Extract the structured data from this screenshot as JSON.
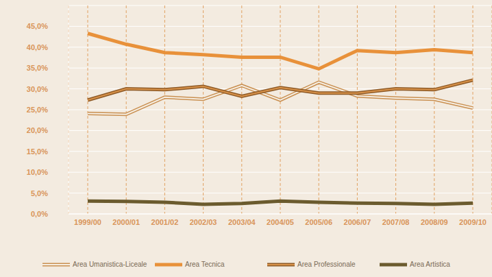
{
  "chart_data": {
    "type": "line",
    "categories": [
      "1999/00",
      "2000/01",
      "2001/02",
      "2002/03",
      "2003/04",
      "2004/05",
      "2005/06",
      "2006/07",
      "2007/08",
      "2008/09",
      "2009/10"
    ],
    "series": [
      {
        "name": "Area Umanistica-Liceale",
        "color": "#c98f50",
        "line_style": "double",
        "values": [
          24.1,
          23.9,
          28.0,
          27.5,
          30.8,
          27.3,
          31.6,
          28.3,
          27.8,
          27.5,
          25.4
        ]
      },
      {
        "name": "Area Tecnica",
        "color": "#e8913a",
        "line_style": "solid",
        "values": [
          43.3,
          40.7,
          38.7,
          38.2,
          37.6,
          37.6,
          34.8,
          39.2,
          38.7,
          39.4,
          38.7
        ]
      },
      {
        "name": "Area Professionale",
        "color": "#8e5a26",
        "line_style": "double",
        "values": [
          27.3,
          30.0,
          29.8,
          30.6,
          28.2,
          30.3,
          29.0,
          29.0,
          30.0,
          29.8,
          32.1
        ]
      },
      {
        "name": "Area Artistica",
        "color": "#6b5b2e",
        "line_style": "solid",
        "values": [
          3.1,
          3.0,
          2.8,
          2.3,
          2.5,
          3.1,
          2.8,
          2.6,
          2.5,
          2.3,
          2.6
        ]
      }
    ],
    "ylim": [
      0,
      50
    ],
    "yticks": [
      {
        "value": 0,
        "label": "0,0%"
      },
      {
        "value": 5,
        "label": "5,0%"
      },
      {
        "value": 10,
        "label": "10,0%"
      },
      {
        "value": 15,
        "label": "15,0%"
      },
      {
        "value": 20,
        "label": "20,0%"
      },
      {
        "value": 25,
        "label": "25,0%"
      },
      {
        "value": 30,
        "label": "30,0%"
      },
      {
        "value": 35,
        "label": "35,0%"
      },
      {
        "value": 40,
        "label": "40,0%"
      },
      {
        "value": 45,
        "label": "45,0%"
      }
    ],
    "grid": true,
    "legend": "bottom"
  }
}
